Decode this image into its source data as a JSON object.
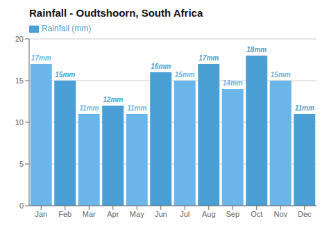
{
  "chart_data": {
    "type": "bar",
    "title": "Rainfall - Oudtshoorn, South Africa",
    "categories": [
      "Jan",
      "Feb",
      "Mar",
      "Apr",
      "May",
      "Jun",
      "Jul",
      "Aug",
      "Sep",
      "Oct",
      "Nov",
      "Dec"
    ],
    "series": [
      {
        "name": "Rainfall (mm)",
        "values": [
          17,
          15,
          11,
          12,
          11,
          16,
          15,
          17,
          14,
          18,
          15,
          11
        ],
        "value_labels": [
          "17mm",
          "15mm",
          "11mm",
          "12mm",
          "11mm",
          "16mm",
          "15mm",
          "17mm",
          "14mm",
          "18mm",
          "15mm",
          "11mm"
        ],
        "colors": [
          "#6bb5e8",
          "#4a9fd4",
          "#6bb5e8",
          "#4a9fd4",
          "#6bb5e8",
          "#4a9fd4",
          "#6bb5e8",
          "#4a9fd4",
          "#6bb5e8",
          "#4a9fd4",
          "#6bb5e8",
          "#4a9fd4"
        ]
      }
    ],
    "ylim": [
      0,
      20
    ],
    "yticks": [
      0,
      5,
      10,
      15,
      20
    ],
    "grid": true,
    "legend": "upper left",
    "data_labels": true
  }
}
